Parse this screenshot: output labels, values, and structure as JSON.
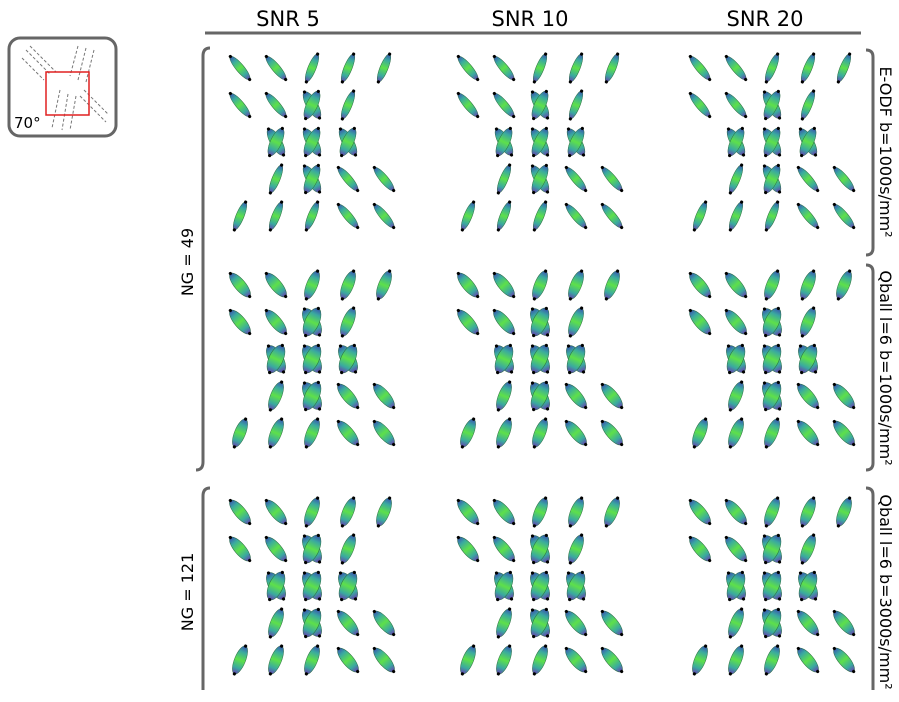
{
  "inset": {
    "label": "70°"
  },
  "columns": [
    "SNR 5",
    "SNR 10",
    "SNR 20"
  ],
  "groups": [
    "NG = 49",
    "NG = 121"
  ],
  "rows": [
    "E-ODF b=1000s/mm²",
    "Qball l=6  b=1000s/mm²",
    "Qball l=6 b=3000s/mm²"
  ]
}
